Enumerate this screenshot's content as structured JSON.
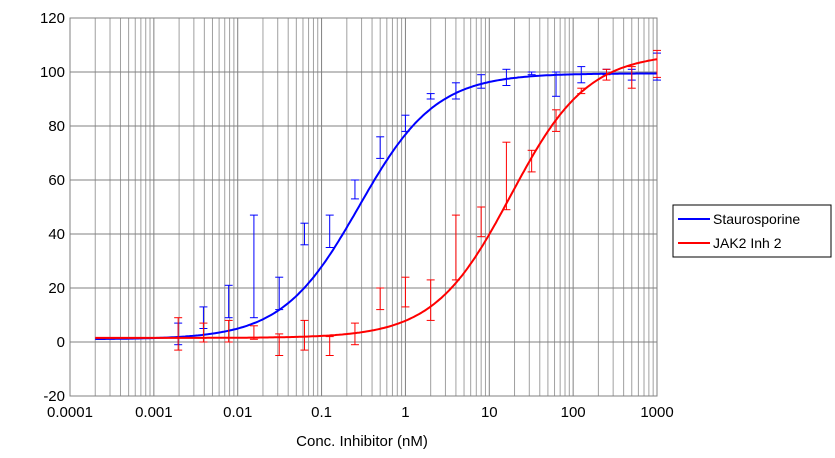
{
  "chart_data": {
    "type": "line",
    "title": "",
    "xlabel": "Conc. Inhibitor (nM)",
    "ylabel": "",
    "xscale": "log",
    "xlim": [
      0.0001,
      1000
    ],
    "ylim": [
      -20,
      120
    ],
    "x_tick_labels": [
      "0.0001",
      "0.001",
      "0.01",
      "0.1",
      "1",
      "10",
      "100",
      "1000"
    ],
    "y_tick_labels": [
      "-20",
      "0",
      "20",
      "40",
      "60",
      "80",
      "100",
      "120"
    ],
    "grid": true,
    "legend_position": "right",
    "series": [
      {
        "name": "Staurosporine",
        "color": "#0000ff",
        "fit": {
          "model": "4PL",
          "bottom": 1,
          "top": 99.5,
          "ec50": 0.28,
          "hill": 0.95
        },
        "points": [
          {
            "x": 0.00195,
            "y": 3,
            "lo": -1,
            "hi": 7
          },
          {
            "x": 0.0039,
            "y": 7,
            "lo": 5,
            "hi": 13
          },
          {
            "x": 0.0078,
            "y": 15,
            "lo": 9,
            "hi": 21
          },
          {
            "x": 0.0156,
            "y": 28,
            "lo": 9,
            "hi": 47
          },
          {
            "x": 0.03125,
            "y": 18,
            "lo": 12,
            "hi": 24
          },
          {
            "x": 0.0625,
            "y": 40,
            "lo": 36,
            "hi": 44
          },
          {
            "x": 0.125,
            "y": 41,
            "lo": 35,
            "hi": 47
          },
          {
            "x": 0.25,
            "y": 56,
            "lo": 53,
            "hi": 60
          },
          {
            "x": 0.5,
            "y": 72,
            "lo": 68,
            "hi": 76
          },
          {
            "x": 1,
            "y": 81,
            "lo": 78,
            "hi": 84
          },
          {
            "x": 2,
            "y": 91,
            "lo": 90,
            "hi": 92
          },
          {
            "x": 4,
            "y": 93,
            "lo": 90,
            "hi": 96
          },
          {
            "x": 8,
            "y": 97,
            "lo": 94,
            "hi": 99
          },
          {
            "x": 16,
            "y": 98,
            "lo": 95,
            "hi": 101
          },
          {
            "x": 32,
            "y": 99.5,
            "lo": 99,
            "hi": 100
          },
          {
            "x": 62.5,
            "y": 96,
            "lo": 91,
            "hi": 100
          },
          {
            "x": 125,
            "y": 99,
            "lo": 96,
            "hi": 102
          },
          {
            "x": 250,
            "y": 100,
            "lo": 99,
            "hi": 101
          },
          {
            "x": 500,
            "y": 99,
            "lo": 97,
            "hi": 101
          },
          {
            "x": 1000,
            "y": 102,
            "lo": 97,
            "hi": 107
          }
        ]
      },
      {
        "name": "JAK2 Inh 2",
        "color": "#ff0000",
        "fit": {
          "model": "4PL",
          "bottom": 1.5,
          "top": 107,
          "ec50": 18,
          "hill": 0.95
        },
        "points": [
          {
            "x": 0.00195,
            "y": 3,
            "lo": -3,
            "hi": 9
          },
          {
            "x": 0.0039,
            "y": 3,
            "lo": 0,
            "hi": 7
          },
          {
            "x": 0.0078,
            "y": 3,
            "lo": 0,
            "hi": 8
          },
          {
            "x": 0.0156,
            "y": 3,
            "lo": 1,
            "hi": 6
          },
          {
            "x": 0.03125,
            "y": -1,
            "lo": -5,
            "hi": 3
          },
          {
            "x": 0.0625,
            "y": 2,
            "lo": -3,
            "hi": 8
          },
          {
            "x": 0.125,
            "y": -2,
            "lo": -5,
            "hi": 2
          },
          {
            "x": 0.25,
            "y": 3,
            "lo": -1,
            "hi": 7
          },
          {
            "x": 0.5,
            "y": 16,
            "lo": 12,
            "hi": 20
          },
          {
            "x": 1,
            "y": 18,
            "lo": 13,
            "hi": 24
          },
          {
            "x": 2,
            "y": 16,
            "lo": 8,
            "hi": 23
          },
          {
            "x": 4,
            "y": 35,
            "lo": 23,
            "hi": 47
          },
          {
            "x": 8,
            "y": 44,
            "lo": 39,
            "hi": 50
          },
          {
            "x": 16,
            "y": 62,
            "lo": 49,
            "hi": 74
          },
          {
            "x": 32,
            "y": 67,
            "lo": 63,
            "hi": 71
          },
          {
            "x": 62.5,
            "y": 82,
            "lo": 78,
            "hi": 86
          },
          {
            "x": 125,
            "y": 93,
            "lo": 92,
            "hi": 94
          },
          {
            "x": 250,
            "y": 99,
            "lo": 97,
            "hi": 101
          },
          {
            "x": 500,
            "y": 98,
            "lo": 94,
            "hi": 102
          },
          {
            "x": 1000,
            "y": 103,
            "lo": 98,
            "hi": 108
          }
        ]
      }
    ]
  }
}
